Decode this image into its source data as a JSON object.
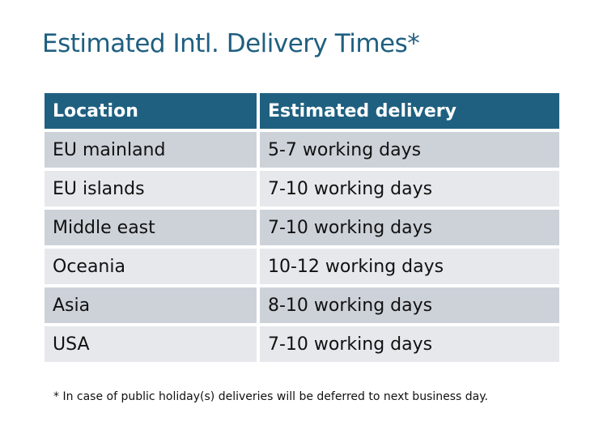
{
  "title": "Estimated Intl. Delivery Times*",
  "colors": {
    "header": "#1f6080",
    "title": "#1f5f80",
    "row_dark": "#cdd2d9",
    "row_light": "#e6e8eb"
  },
  "table": {
    "headers": [
      "Location",
      "Estimated delivery"
    ],
    "rows": [
      [
        "EU mainland",
        "5-7 working days"
      ],
      [
        "EU islands",
        "7-10 working days"
      ],
      [
        "Middle east",
        "7-10 working days"
      ],
      [
        "Oceania",
        "10-12 working days"
      ],
      [
        "Asia",
        "8-10 working days"
      ],
      [
        "USA",
        "7-10 working days"
      ]
    ]
  },
  "footnote": "* In case of public holiday(s) deliveries will be deferred to next business day."
}
